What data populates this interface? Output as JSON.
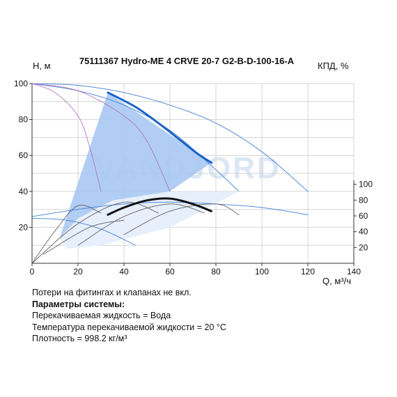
{
  "chart_data": {
    "type": "line",
    "title": "75111367 Hydro-ME 4 CRVE 20-7 G2-B-D-100-16-A",
    "ylabel_left": "H, м",
    "ylabel_right": "КПД, %",
    "xlabel": "Q, м³/ч",
    "watermark": "VANDJORD",
    "x_ticks": [
      "0",
      "20",
      "40",
      "60",
      "80",
      "100",
      "120",
      "140"
    ],
    "y_ticks": [
      "20",
      "40",
      "60",
      "80",
      "100"
    ],
    "y2_ticks": [
      "20",
      "40",
      "60",
      "80",
      "100"
    ],
    "xlim": [
      0,
      140
    ],
    "ylim": [
      0,
      100
    ],
    "y2lim": [
      0,
      100
    ],
    "grid": true,
    "colors": {
      "operating_range": "#a9c8f2",
      "extended_range": "#e6effb",
      "max_curve": "#1a63c8",
      "efficiency_curve": "#111111",
      "thin_blue": "#4a86d8",
      "thin_purple": "#b06ec0",
      "thin_gray": "#555555"
    },
    "series": [
      {
        "role": "head-max-speed",
        "x": [
          33,
          45,
          55,
          65,
          72,
          78
        ],
        "y": [
          95,
          87,
          78,
          68,
          61,
          56
        ]
      },
      {
        "role": "efficiency",
        "x": [
          33,
          40,
          50,
          60,
          70,
          78
        ],
        "y": [
          27,
          31,
          35,
          36,
          33,
          29
        ]
      },
      {
        "role": "head-speed-blue-1",
        "x": [
          0,
          20,
          40,
          60,
          80,
          100,
          120
        ],
        "y": [
          100,
          99,
          95,
          88,
          78,
          62,
          40
        ]
      },
      {
        "role": "head-speed-blue-2",
        "x": [
          0,
          20,
          40,
          60,
          80,
          90
        ],
        "y": [
          100,
          96,
          88,
          74,
          52,
          40
        ]
      },
      {
        "role": "head-speed-blue-3",
        "x": [
          0,
          20,
          40,
          60,
          80,
          100,
          120
        ],
        "y": [
          26,
          30,
          33,
          34,
          33,
          31,
          27
        ]
      },
      {
        "role": "head-speed-blue-4",
        "x": [
          0,
          15,
          30,
          45
        ],
        "y": [
          25,
          24,
          19,
          10
        ]
      },
      {
        "role": "purple-1",
        "x": [
          0,
          10,
          20,
          25,
          30
        ],
        "y": [
          100,
          95,
          82,
          65,
          40
        ]
      },
      {
        "role": "purple-2",
        "x": [
          0,
          20,
          40,
          50,
          60
        ],
        "y": [
          100,
          96,
          82,
          68,
          40
        ]
      },
      {
        "role": "gray-1",
        "x": [
          0,
          10,
          20,
          30
        ],
        "y": [
          0,
          18,
          32,
          28
        ]
      },
      {
        "role": "gray-2",
        "x": [
          0,
          20,
          40,
          55
        ],
        "y": [
          0,
          22,
          34,
          28
        ]
      },
      {
        "role": "gray-3",
        "x": [
          20,
          40,
          60,
          75
        ],
        "y": [
          10,
          26,
          33,
          28
        ]
      },
      {
        "role": "gray-4",
        "x": [
          40,
          60,
          80,
          90
        ],
        "y": [
          16,
          29,
          33,
          27
        ]
      },
      {
        "role": "gray-5",
        "x": [
          5,
          25,
          40
        ],
        "y": [
          5,
          20,
          24
        ]
      }
    ],
    "operating_range_polygon": {
      "x": [
        33,
        78,
        60,
        35,
        20,
        12
      ],
      "y": [
        95,
        56,
        40,
        35,
        25,
        14
      ]
    },
    "extended_range_polygon": {
      "x": [
        12,
        20,
        35,
        60,
        90,
        60,
        30,
        15
      ],
      "y": [
        14,
        25,
        35,
        40,
        40,
        20,
        10,
        8
      ]
    }
  },
  "notes": {
    "line1": "Потери на фитингах и клапанах не вкл.",
    "line2": "Параметры системы:",
    "line3": "Перекачиваемая жидкость = Вода",
    "line4": "Температура перекачиваемой жидкости = 20 °C",
    "line5": "Плотность = 998.2 кг/м³"
  }
}
